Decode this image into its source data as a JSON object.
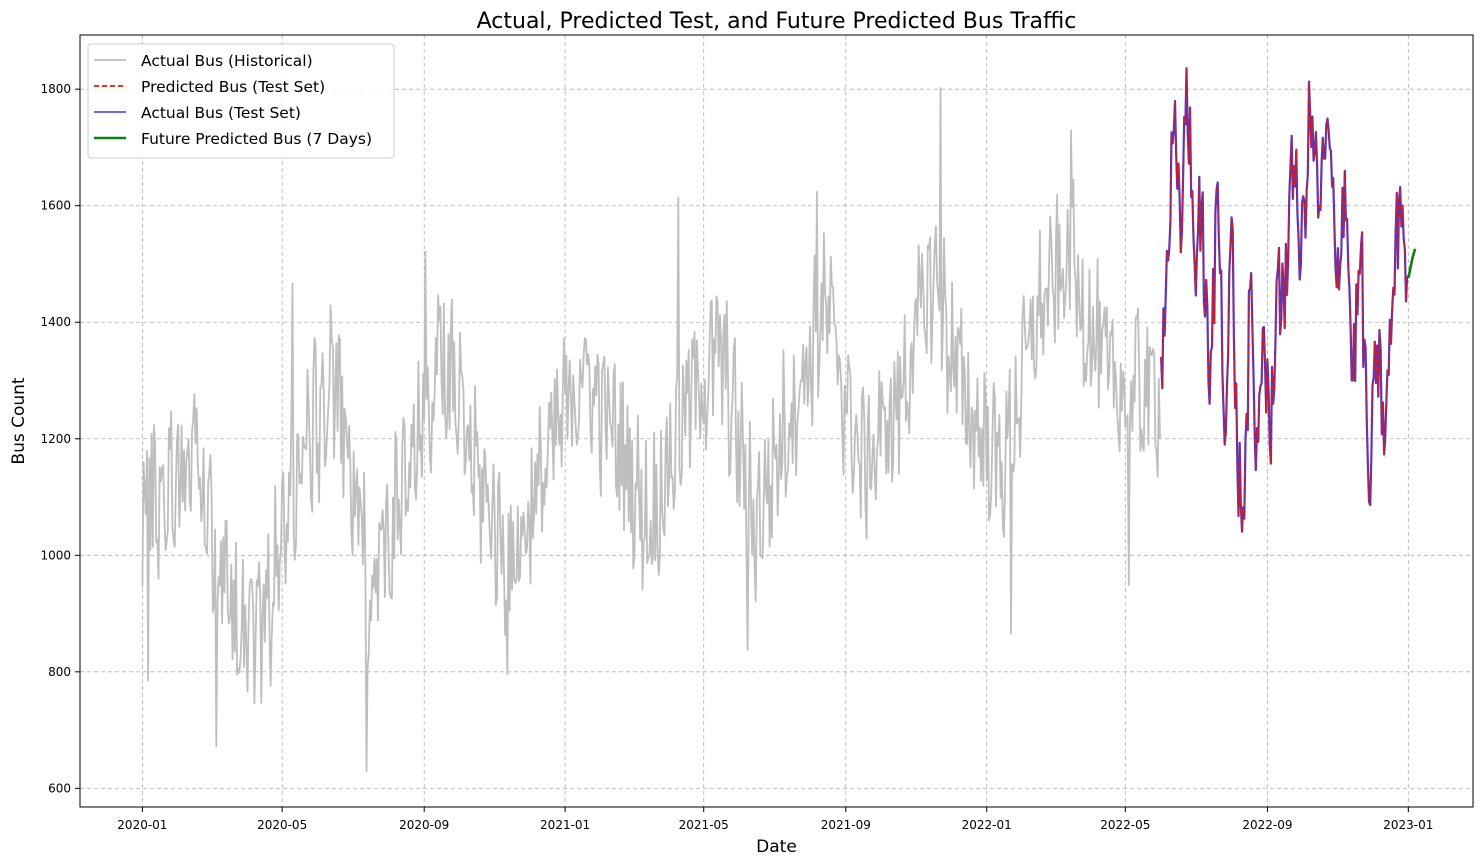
{
  "chart_data": {
    "type": "line",
    "title": "Actual, Predicted Test, and Future Predicted Bus Traffic",
    "xlabel": "Date",
    "ylabel": "Bus Count",
    "xlim": [
      "2019-11-08",
      "2023-02-26"
    ],
    "ylim": [
      568,
      1893
    ],
    "x_ticks": [
      "2020-01",
      "2020-05",
      "2020-09",
      "2021-01",
      "2021-05",
      "2021-09",
      "2022-01",
      "2022-05",
      "2022-09",
      "2023-01"
    ],
    "y_ticks": [
      600,
      800,
      1000,
      1200,
      1400,
      1600,
      1800
    ],
    "grid": true,
    "legend_position": "top-left",
    "colors": {
      "historical": "#bebebe",
      "predicted_test": "#e8190b",
      "actual_test": "#3b3be0",
      "future": "#0c800c",
      "overlap": "#5a0fc0"
    },
    "series": [
      {
        "name": "Actual Bus (Historical)",
        "style": "solid",
        "monthly_mean": [
          [
            "2020-01",
            1100
          ],
          [
            "2020-02",
            1180
          ],
          [
            "2020-03",
            920
          ],
          [
            "2020-04",
            880
          ],
          [
            "2020-05",
            1150
          ],
          [
            "2020-06",
            1300
          ],
          [
            "2020-07",
            950
          ],
          [
            "2020-08",
            1100
          ],
          [
            "2020-09",
            1350
          ],
          [
            "2020-10",
            1150
          ],
          [
            "2020-11",
            980
          ],
          [
            "2020-12",
            1150
          ],
          [
            "2021-01",
            1320
          ],
          [
            "2021-02",
            1200
          ],
          [
            "2021-03",
            1050
          ],
          [
            "2021-04",
            1250
          ],
          [
            "2021-05",
            1350
          ],
          [
            "2021-06",
            1050
          ],
          [
            "2021-07",
            1250
          ],
          [
            "2021-08",
            1420
          ],
          [
            "2021-09",
            1150
          ],
          [
            "2021-10",
            1250
          ],
          [
            "2021-11",
            1480
          ],
          [
            "2021-12",
            1250
          ],
          [
            "2022-01",
            1150
          ],
          [
            "2022-02",
            1420
          ],
          [
            "2022-03",
            1500
          ],
          [
            "2022-04",
            1300
          ],
          [
            "2022-05",
            1280
          ]
        ],
        "extremes": [
          [
            "2020-01-06",
            785
          ],
          [
            "2020-03-05",
            672
          ],
          [
            "2020-05-10",
            1467
          ],
          [
            "2020-07-13",
            629
          ],
          [
            "2020-09-02",
            1522
          ],
          [
            "2020-11-12",
            796
          ],
          [
            "2021-04-09",
            1614
          ],
          [
            "2021-06-08",
            838
          ],
          [
            "2021-08-07",
            1624
          ],
          [
            "2021-11-22",
            1802
          ],
          [
            "2022-01-22",
            866
          ],
          [
            "2022-03-15",
            1730
          ],
          [
            "2022-05-04",
            949
          ]
        ]
      },
      {
        "name": "Predicted Bus (Test Set)",
        "style": "dashed",
        "anchors": [
          [
            "2022-06-01",
            1340
          ],
          [
            "2022-06-05",
            1450
          ],
          [
            "2022-06-12",
            1730
          ],
          [
            "2022-06-18",
            1520
          ],
          [
            "2022-06-23",
            1836
          ],
          [
            "2022-06-30",
            1500
          ],
          [
            "2022-07-06",
            1600
          ],
          [
            "2022-07-13",
            1260
          ],
          [
            "2022-07-20",
            1640
          ],
          [
            "2022-07-27",
            1210
          ],
          [
            "2022-08-01",
            1580
          ],
          [
            "2022-08-06",
            1150
          ],
          [
            "2022-08-12",
            1063
          ],
          [
            "2022-08-17",
            1458
          ],
          [
            "2022-08-22",
            1146
          ],
          [
            "2022-08-28",
            1390
          ],
          [
            "2022-09-03",
            1190
          ],
          [
            "2022-09-10",
            1490
          ],
          [
            "2022-09-16",
            1390
          ],
          [
            "2022-09-22",
            1720
          ],
          [
            "2022-09-30",
            1500
          ],
          [
            "2022-10-08",
            1760
          ],
          [
            "2022-10-16",
            1600
          ],
          [
            "2022-10-24",
            1730
          ],
          [
            "2022-10-31",
            1460
          ],
          [
            "2022-11-07",
            1660
          ],
          [
            "2022-11-14",
            1300
          ],
          [
            "2022-11-21",
            1530
          ],
          [
            "2022-11-28",
            1092
          ],
          [
            "2022-12-05",
            1360
          ],
          [
            "2022-12-12",
            1200
          ],
          [
            "2022-12-18",
            1420
          ],
          [
            "2022-12-25",
            1632
          ],
          [
            "2022-12-31",
            1480
          ]
        ]
      },
      {
        "name": "Actual Bus (Test Set)",
        "style": "solid",
        "note_same_as_predicted": true
      },
      {
        "name": "Future Predicted Bus (7 Days)",
        "style": "solid",
        "points": [
          [
            "2023-01-01",
            1476
          ],
          [
            "2023-01-02",
            1485
          ],
          [
            "2023-01-03",
            1495
          ],
          [
            "2023-01-04",
            1505
          ],
          [
            "2023-01-05",
            1513
          ],
          [
            "2023-01-06",
            1520
          ],
          [
            "2023-01-07",
            1526
          ]
        ]
      }
    ]
  }
}
